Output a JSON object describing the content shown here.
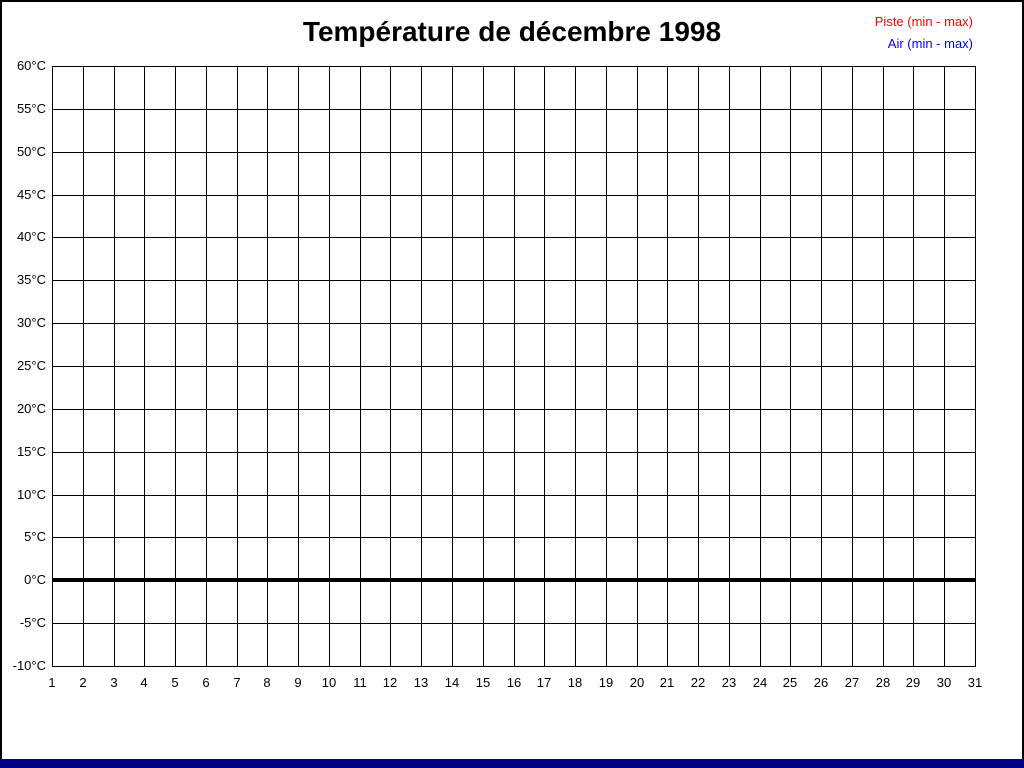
{
  "page": {
    "background": "#ffffff",
    "frame_color": "#000000",
    "bottom_bar_color": "#000080"
  },
  "chart_data": {
    "type": "line",
    "title": "Température de décembre 1998",
    "xlabel": "",
    "ylabel": "",
    "x_tick_labels": [
      "1",
      "2",
      "3",
      "4",
      "5",
      "6",
      "7",
      "8",
      "9",
      "10",
      "11",
      "12",
      "13",
      "14",
      "15",
      "16",
      "17",
      "18",
      "19",
      "20",
      "21",
      "22",
      "23",
      "24",
      "25",
      "26",
      "27",
      "28",
      "29",
      "30",
      "31"
    ],
    "y_tick_labels": [
      "60°C",
      "55°C",
      "50°C",
      "45°C",
      "40°C",
      "35°C",
      "30°C",
      "25°C",
      "20°C",
      "15°C",
      "10°C",
      "5°C",
      "0°C",
      "-5°C",
      "-10°C"
    ],
    "xlim": [
      1,
      31
    ],
    "ylim": [
      -10,
      60
    ],
    "y_step": 5,
    "grid": true,
    "gridline_color": "#000000",
    "tick_label_color": "#000000",
    "title_color": "#000000",
    "legend_position": "top-right",
    "legend": [
      {
        "label": "Piste (min - max)",
        "color": "#ff0000"
      },
      {
        "label": "Air (min - max)",
        "color": "#0000ff"
      }
    ],
    "series": [
      {
        "name": "Piste (min - max)",
        "color": "#ff0000",
        "values": []
      },
      {
        "name": "Air (min - max)",
        "color": "#0000ff",
        "values": []
      }
    ],
    "zero_line": {
      "value": 0,
      "color": "#000000",
      "thickness": 4
    }
  }
}
